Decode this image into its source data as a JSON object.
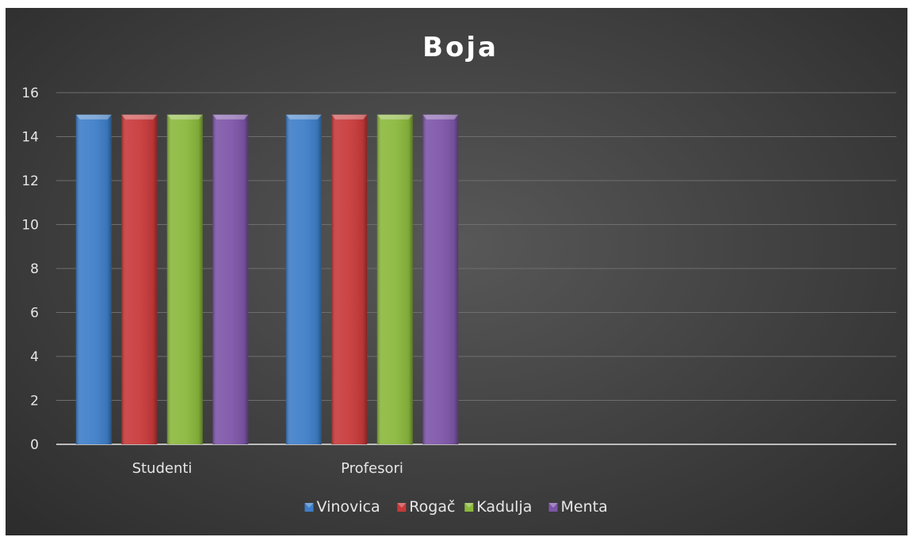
{
  "chart_data": {
    "type": "bar",
    "title": "Boja",
    "categories": [
      "Studenti",
      "Profesori"
    ],
    "series": [
      {
        "name": "Vinovica",
        "values": [
          15,
          15
        ],
        "color": "#3e7ec8"
      },
      {
        "name": "Rogač",
        "values": [
          15,
          15
        ],
        "color": "#c8393a"
      },
      {
        "name": "Kadulja",
        "values": [
          15,
          15
        ],
        "color": "#8bb83c"
      },
      {
        "name": "Menta",
        "values": [
          15,
          15
        ],
        "color": "#7d55a8"
      }
    ],
    "yticks": [
      0,
      2,
      4,
      6,
      8,
      10,
      12,
      14,
      16
    ],
    "ylim": [
      0,
      16
    ],
    "xlabel": "",
    "ylabel": "",
    "grid": true,
    "legend_position": "bottom",
    "background": "#444444"
  }
}
